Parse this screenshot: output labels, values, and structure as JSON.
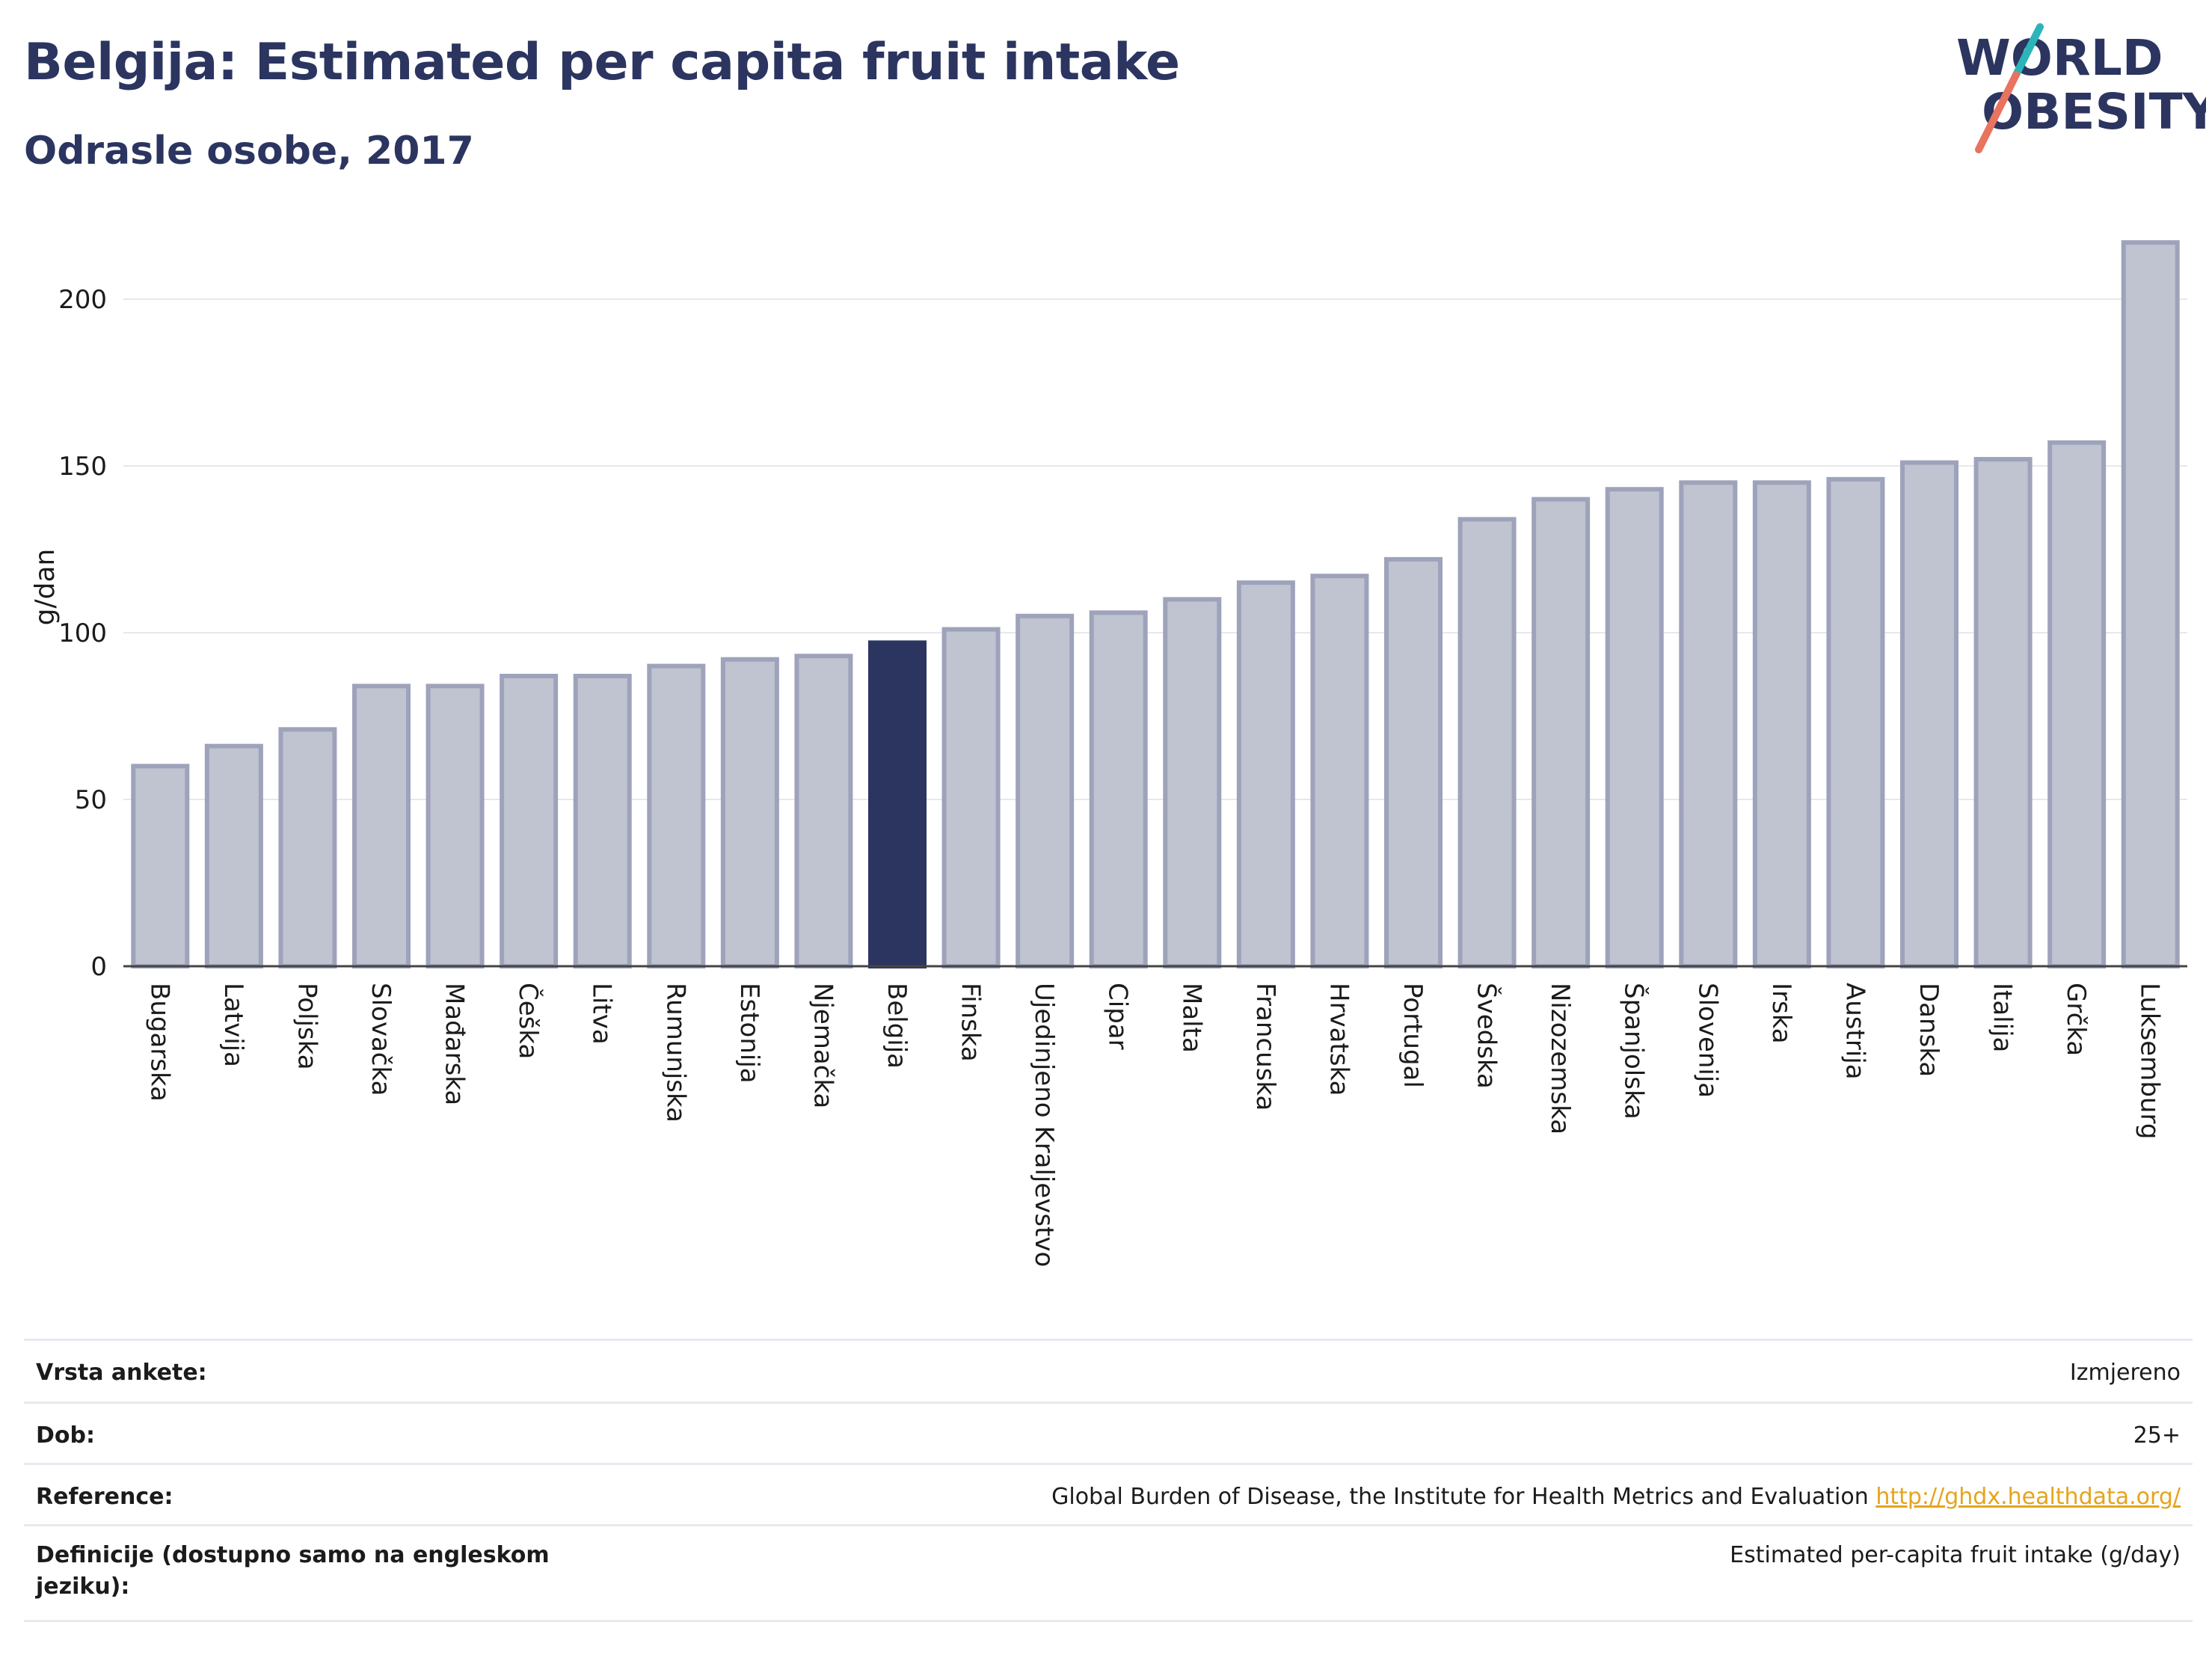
{
  "header": {
    "title": "Belgija: Estimated per capita fruit intake",
    "subtitle": "Odrasle osobe, 2017"
  },
  "logo": {
    "line1": "WORLD",
    "line2": "OBESITY"
  },
  "colors": {
    "bar": "#c0c3d0",
    "bar_border": "#9ea3bb",
    "highlight": "#2b3560",
    "accent_teal": "#2bb5b8",
    "accent_coral": "#e8735f",
    "link": "#e5a41c"
  },
  "chart_data": {
    "type": "bar",
    "title": "Belgija: Estimated per capita fruit intake",
    "subtitle": "Odrasle osobe, 2017",
    "ylabel": "g/dan",
    "xlabel": "",
    "ylim": [
      0,
      225
    ],
    "yticks": [
      0,
      50,
      100,
      150,
      200
    ],
    "grid": true,
    "highlight": "Belgija",
    "categories": [
      "Bugarska",
      "Latvija",
      "Poljska",
      "Slovačka",
      "Mađarska",
      "Češka",
      "Litva",
      "Rumunjska",
      "Estonija",
      "Njemačka",
      "Belgija",
      "Finska",
      "Ujedinjeno Kraljevstvo",
      "Cipar",
      "Malta",
      "Francuska",
      "Hrvatska",
      "Portugal",
      "Švedska",
      "Nizozemska",
      "Španjolska",
      "Slovenija",
      "Irska",
      "Austrija",
      "Danska",
      "Italija",
      "Grčka",
      "Luksemburg"
    ],
    "values": [
      60,
      66,
      71,
      84,
      84,
      87,
      87,
      90,
      92,
      93,
      97,
      101,
      105,
      106,
      110,
      115,
      117,
      122,
      134,
      140,
      143,
      145,
      145,
      146,
      151,
      152,
      157,
      217
    ]
  },
  "info": {
    "rows": [
      {
        "label": "Vrsta ankete:",
        "value": "Izmjereno"
      },
      {
        "label": "Dob:",
        "value": "25+"
      },
      {
        "label": "Reference:",
        "value": "Global Burden of Disease, the Institute for Health Metrics and Evaluation",
        "link": "http://ghdx.healthdata.org/"
      },
      {
        "label": "Definicije (dostupno samo na engleskom jeziku):",
        "value": "Estimated per-capita fruit intake (g/day)"
      }
    ]
  }
}
